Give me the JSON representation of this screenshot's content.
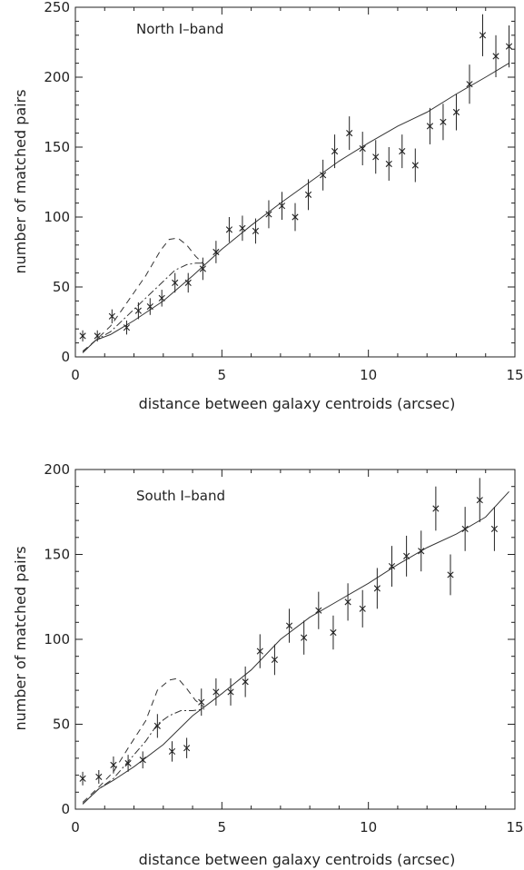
{
  "chart_data": [
    {
      "type": "scatter",
      "panel_label": "North I–band",
      "xlabel": "distance between galaxy centroids (arcsec)",
      "ylabel": "number of matched pairs",
      "xlim": [
        0,
        15
      ],
      "ylim": [
        0,
        250
      ],
      "xticks": [
        0,
        5,
        10,
        15
      ],
      "yticks": [
        0,
        50,
        100,
        150,
        200,
        250
      ],
      "grid": false,
      "points": [
        {
          "x": 0.25,
          "y": 15,
          "err": 4
        },
        {
          "x": 0.75,
          "y": 15,
          "err": 4
        },
        {
          "x": 1.25,
          "y": 29,
          "err": 5
        },
        {
          "x": 1.75,
          "y": 21,
          "err": 5
        },
        {
          "x": 2.15,
          "y": 33,
          "err": 6
        },
        {
          "x": 2.55,
          "y": 36,
          "err": 6
        },
        {
          "x": 2.95,
          "y": 42,
          "err": 6
        },
        {
          "x": 3.4,
          "y": 53,
          "err": 7
        },
        {
          "x": 3.85,
          "y": 53,
          "err": 7
        },
        {
          "x": 4.35,
          "y": 63,
          "err": 8
        },
        {
          "x": 4.8,
          "y": 75,
          "err": 8
        },
        {
          "x": 5.25,
          "y": 91,
          "err": 9
        },
        {
          "x": 5.7,
          "y": 92,
          "err": 9
        },
        {
          "x": 6.15,
          "y": 90,
          "err": 9
        },
        {
          "x": 6.6,
          "y": 102,
          "err": 10
        },
        {
          "x": 7.05,
          "y": 108,
          "err": 10
        },
        {
          "x": 7.5,
          "y": 100,
          "err": 10
        },
        {
          "x": 7.95,
          "y": 116,
          "err": 11
        },
        {
          "x": 8.45,
          "y": 130,
          "err": 11
        },
        {
          "x": 8.85,
          "y": 147,
          "err": 12
        },
        {
          "x": 9.35,
          "y": 160,
          "err": 12
        },
        {
          "x": 9.8,
          "y": 149,
          "err": 12
        },
        {
          "x": 10.25,
          "y": 143,
          "err": 12
        },
        {
          "x": 10.7,
          "y": 138,
          "err": 12
        },
        {
          "x": 11.15,
          "y": 147,
          "err": 12
        },
        {
          "x": 11.6,
          "y": 137,
          "err": 12
        },
        {
          "x": 12.1,
          "y": 165,
          "err": 13
        },
        {
          "x": 12.55,
          "y": 168,
          "err": 13
        },
        {
          "x": 13.0,
          "y": 175,
          "err": 13
        },
        {
          "x": 13.45,
          "y": 195,
          "err": 14
        },
        {
          "x": 13.9,
          "y": 230,
          "err": 15
        },
        {
          "x": 14.35,
          "y": 215,
          "err": 15
        },
        {
          "x": 14.8,
          "y": 222,
          "err": 15
        }
      ],
      "solid_line": [
        [
          0.25,
          3
        ],
        [
          0.7,
          12
        ],
        [
          1.2,
          16
        ],
        [
          2.0,
          26
        ],
        [
          3.0,
          40
        ],
        [
          4.0,
          58
        ],
        [
          5.0,
          77
        ],
        [
          6.0,
          94
        ],
        [
          7.0,
          110
        ],
        [
          8.0,
          125
        ],
        [
          9.0,
          140
        ],
        [
          10.0,
          153
        ],
        [
          11.0,
          165
        ],
        [
          12.0,
          175
        ],
        [
          13.0,
          188
        ],
        [
          14.0,
          200
        ],
        [
          14.8,
          210
        ]
      ],
      "dashed_line": [
        [
          0.25,
          4
        ],
        [
          0.7,
          12
        ],
        [
          1.2,
          22
        ],
        [
          1.8,
          40
        ],
        [
          2.4,
          58
        ],
        [
          2.9,
          76
        ],
        [
          3.2,
          84
        ],
        [
          3.5,
          85
        ],
        [
          3.8,
          80
        ],
        [
          4.1,
          72
        ],
        [
          4.4,
          66
        ]
      ],
      "dashdot_line": [
        [
          0.25,
          3
        ],
        [
          0.7,
          12
        ],
        [
          1.2,
          18
        ],
        [
          1.8,
          30
        ],
        [
          2.4,
          42
        ],
        [
          2.9,
          52
        ],
        [
          3.4,
          62
        ],
        [
          3.8,
          66
        ],
        [
          4.1,
          67
        ],
        [
          4.4,
          67
        ]
      ]
    },
    {
      "type": "scatter",
      "panel_label": "South I–band",
      "xlabel": "distance between galaxy centroids (arcsec)",
      "ylabel": "number of matched pairs",
      "xlim": [
        0,
        15
      ],
      "ylim": [
        0,
        200
      ],
      "xticks": [
        0,
        5,
        10,
        15
      ],
      "yticks": [
        0,
        50,
        100,
        150,
        200
      ],
      "grid": false,
      "points": [
        {
          "x": 0.25,
          "y": 18,
          "err": 4
        },
        {
          "x": 0.8,
          "y": 19,
          "err": 4
        },
        {
          "x": 1.3,
          "y": 26,
          "err": 5
        },
        {
          "x": 1.8,
          "y": 27,
          "err": 5
        },
        {
          "x": 2.3,
          "y": 29,
          "err": 5
        },
        {
          "x": 2.8,
          "y": 49,
          "err": 7
        },
        {
          "x": 3.3,
          "y": 34,
          "err": 6
        },
        {
          "x": 3.8,
          "y": 36,
          "err": 6
        },
        {
          "x": 4.3,
          "y": 63,
          "err": 8
        },
        {
          "x": 4.8,
          "y": 69,
          "err": 8
        },
        {
          "x": 5.3,
          "y": 69,
          "err": 8
        },
        {
          "x": 5.8,
          "y": 75,
          "err": 9
        },
        {
          "x": 6.3,
          "y": 93,
          "err": 10
        },
        {
          "x": 6.8,
          "y": 88,
          "err": 9
        },
        {
          "x": 7.3,
          "y": 108,
          "err": 10
        },
        {
          "x": 7.8,
          "y": 101,
          "err": 10
        },
        {
          "x": 8.3,
          "y": 117,
          "err": 11
        },
        {
          "x": 8.8,
          "y": 104,
          "err": 10
        },
        {
          "x": 9.3,
          "y": 122,
          "err": 11
        },
        {
          "x": 9.8,
          "y": 118,
          "err": 11
        },
        {
          "x": 10.3,
          "y": 130,
          "err": 12
        },
        {
          "x": 10.8,
          "y": 143,
          "err": 12
        },
        {
          "x": 11.3,
          "y": 149,
          "err": 12
        },
        {
          "x": 11.8,
          "y": 152,
          "err": 12
        },
        {
          "x": 12.3,
          "y": 177,
          "err": 13
        },
        {
          "x": 12.8,
          "y": 138,
          "err": 12
        },
        {
          "x": 13.3,
          "y": 165,
          "err": 13
        },
        {
          "x": 13.8,
          "y": 182,
          "err": 13
        },
        {
          "x": 14.3,
          "y": 165,
          "err": 13
        }
      ],
      "solid_line": [
        [
          0.25,
          3
        ],
        [
          0.8,
          12
        ],
        [
          1.3,
          17
        ],
        [
          2.0,
          25
        ],
        [
          3.0,
          38
        ],
        [
          4.0,
          55
        ],
        [
          5.0,
          68
        ],
        [
          6.0,
          82
        ],
        [
          7.0,
          100
        ],
        [
          8.0,
          113
        ],
        [
          9.0,
          123
        ],
        [
          10.0,
          133
        ],
        [
          11.0,
          144
        ],
        [
          12.0,
          154
        ],
        [
          13.0,
          162
        ],
        [
          14.0,
          172
        ],
        [
          14.8,
          187
        ]
      ],
      "dashed_line": [
        [
          0.25,
          4
        ],
        [
          0.8,
          13
        ],
        [
          1.3,
          22
        ],
        [
          1.8,
          36
        ],
        [
          2.4,
          52
        ],
        [
          2.8,
          70
        ],
        [
          3.2,
          76
        ],
        [
          3.5,
          77
        ],
        [
          3.8,
          71
        ],
        [
          4.1,
          64
        ],
        [
          4.4,
          60
        ]
      ],
      "dashdot_line": [
        [
          0.25,
          3
        ],
        [
          0.8,
          12
        ],
        [
          1.3,
          18
        ],
        [
          1.8,
          28
        ],
        [
          2.4,
          40
        ],
        [
          2.8,
          50
        ],
        [
          3.2,
          55
        ],
        [
          3.6,
          58
        ],
        [
          4.0,
          58
        ],
        [
          4.4,
          59
        ]
      ]
    }
  ]
}
